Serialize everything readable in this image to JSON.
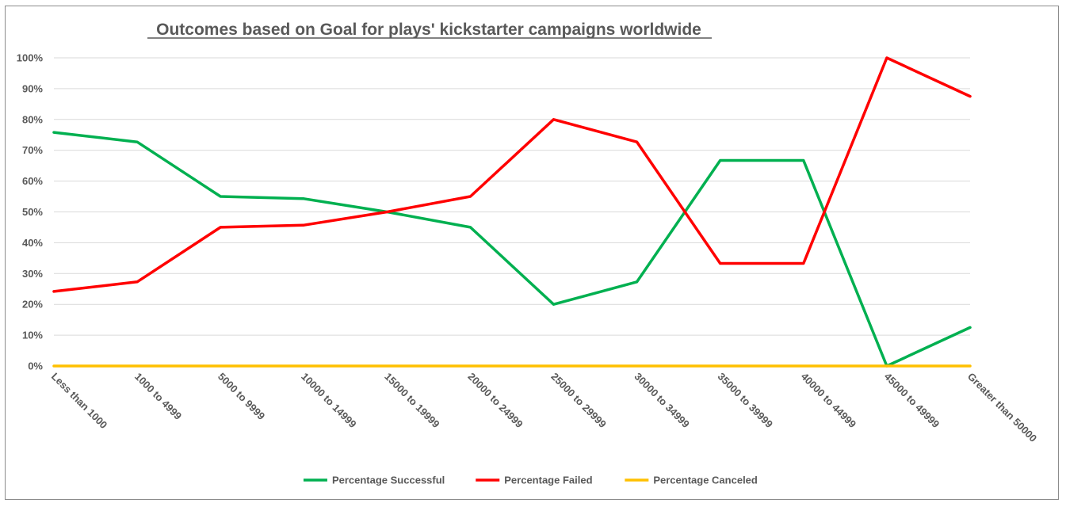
{
  "chart_data": {
    "type": "line",
    "title": "Outcomes based on Goal for plays' kickstarter campaigns worldwide",
    "xlabel": "",
    "ylabel": "",
    "categories": [
      "Less than 1000",
      "1000 to 4999",
      "5000 to 9999",
      "10000 to 14999",
      "15000 to 19999",
      "20000 to 24999",
      "25000 to 29999",
      "30000 to 34999",
      "35000 to 39999",
      "40000 to 44999",
      "45000 to 49999",
      "Greater than 50000"
    ],
    "y_ticks": [
      "0%",
      "10%",
      "20%",
      "30%",
      "40%",
      "50%",
      "60%",
      "70%",
      "80%",
      "90%",
      "100%"
    ],
    "ylim": [
      0,
      1
    ],
    "grid": true,
    "legend_position": "bottom",
    "series": [
      {
        "name": "Percentage Successful",
        "color": "#00b050",
        "values": [
          0.758,
          0.727,
          0.55,
          0.543,
          0.5,
          0.45,
          0.2,
          0.273,
          0.667,
          0.667,
          0.0,
          0.125
        ]
      },
      {
        "name": "Percentage Failed",
        "color": "#ff0000",
        "values": [
          0.242,
          0.273,
          0.45,
          0.457,
          0.5,
          0.55,
          0.8,
          0.727,
          0.333,
          0.333,
          1.0,
          0.875
        ]
      },
      {
        "name": "Percentage Canceled",
        "color": "#ffc000",
        "values": [
          0,
          0,
          0,
          0,
          0,
          0,
          0,
          0,
          0,
          0,
          0,
          0
        ]
      }
    ]
  }
}
